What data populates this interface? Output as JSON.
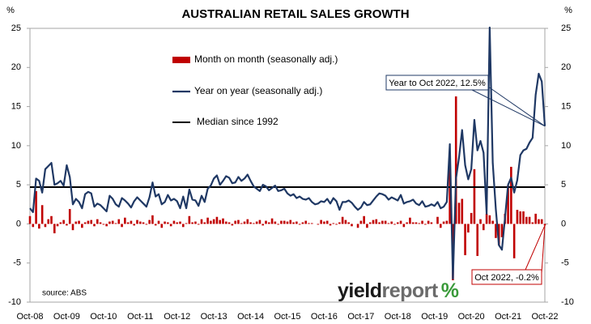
{
  "chart_data": {
    "type": "bar",
    "title": "AUSTRALIAN RETAIL SALES GROWTH",
    "y_unit": "%",
    "y2_unit": "%",
    "source": "source: ABS",
    "logo": [
      "yield",
      "report",
      "%"
    ],
    "legend": "upper center",
    "categories": [
      "Oct-08",
      null,
      null,
      null,
      null,
      null,
      null,
      null,
      null,
      null,
      null,
      null,
      "Oct-09",
      null,
      null,
      null,
      null,
      null,
      null,
      null,
      null,
      null,
      null,
      null,
      "Oct-10",
      null,
      null,
      null,
      null,
      null,
      null,
      null,
      null,
      null,
      null,
      null,
      "Oct-11",
      null,
      null,
      null,
      null,
      null,
      null,
      null,
      null,
      null,
      null,
      null,
      "Oct-12",
      null,
      null,
      null,
      null,
      null,
      null,
      null,
      null,
      null,
      null,
      null,
      "Oct-13",
      null,
      null,
      null,
      null,
      null,
      null,
      null,
      null,
      null,
      null,
      null,
      "Oct-14",
      null,
      null,
      null,
      null,
      null,
      null,
      null,
      null,
      null,
      null,
      null,
      "Oct-15",
      null,
      null,
      null,
      null,
      null,
      null,
      null,
      null,
      null,
      null,
      null,
      "Oct-16",
      null,
      null,
      null,
      null,
      null,
      null,
      null,
      null,
      null,
      null,
      null,
      "Oct-17",
      null,
      null,
      null,
      null,
      null,
      null,
      null,
      null,
      null,
      null,
      null,
      "Oct-18",
      null,
      null,
      null,
      null,
      null,
      null,
      null,
      null,
      null,
      null,
      null,
      "Oct-19",
      null,
      null,
      null,
      null,
      null,
      null,
      null,
      null,
      null,
      null,
      null,
      "Oct-20",
      null,
      null,
      null,
      null,
      null,
      null,
      null,
      null,
      null,
      null,
      null,
      "Oct-21",
      null,
      null,
      null,
      null,
      null,
      null,
      null,
      null,
      null,
      null,
      null,
      "Oct-22"
    ],
    "series": [
      {
        "name": "Month on month (seasonally adj.)",
        "type": "bar",
        "color": "#c00000",
        "values": [
          1.0,
          -0.4,
          4.2,
          -0.6,
          2.4,
          -0.4,
          0.6,
          1.0,
          -1.2,
          -0.3,
          0.2,
          0.5,
          -0.2,
          1.9,
          -0.8,
          0.3,
          0.4,
          -0.5,
          0.2,
          0.4,
          0.5,
          -0.3,
          0.6,
          0.2,
          -0.1,
          -0.3,
          0.3,
          0.4,
          0.1,
          0.6,
          -0.4,
          0.8,
          0.2,
          0.4,
          -0.2,
          0.5,
          0.3,
          0.2,
          -0.1,
          0.5,
          1.1,
          -0.2,
          0.4,
          -0.5,
          0.3,
          0.2,
          -0.3,
          0.4,
          0.2,
          0.3,
          -0.4,
          0.1,
          1.0,
          0.2,
          0.3,
          -0.1,
          0.6,
          0.2,
          0.8,
          0.4,
          0.6,
          0.9,
          0.5,
          0.7,
          0.3,
          0.2,
          -0.2,
          0.4,
          0.5,
          0.1,
          0.3,
          0.6,
          0.2,
          0.1,
          0.3,
          0.5,
          -0.2,
          0.4,
          0.2,
          0.7,
          0.3,
          -0.1,
          0.4,
          0.4,
          0.3,
          0.5,
          0.2,
          0.3,
          -0.1,
          0.2,
          0.4,
          0.1,
          0.1,
          0.0,
          -0.1,
          0.5,
          0.3,
          0.4,
          -0.2,
          0.1,
          -0.1,
          0.2,
          0.9,
          0.5,
          0.2,
          -0.3,
          0.0,
          -0.5,
          0.4,
          1.0,
          -0.5,
          0.2,
          0.5,
          0.6,
          0.2,
          0.4,
          0.4,
          0.1,
          0.3,
          -0.1,
          0.2,
          0.4,
          -0.4,
          0.2,
          0.8,
          0.2,
          0.2,
          0.1,
          0.4,
          -0.1,
          0.4,
          0.2,
          0.0,
          0.9,
          -0.5,
          0.3,
          0.4,
          8.2,
          -7.2,
          16.3,
          2.7,
          3.2,
          -4.0,
          -1.1,
          1.4,
          7.0,
          -4.1,
          0.6,
          -0.8,
          1.3,
          1.1,
          0.4,
          -1.8,
          -2.7,
          -1.7,
          1.3,
          4.9,
          7.3,
          -4.4,
          1.8,
          1.6,
          1.6,
          0.9,
          0.9,
          0.2,
          1.3,
          0.6,
          0.6,
          -0.2
        ]
      },
      {
        "name": "Year on year (seasonally adj.)",
        "type": "line",
        "color": "#1f3864",
        "values": [
          2.0,
          1.5,
          5.8,
          5.5,
          4.0,
          7.0,
          7.4,
          7.8,
          5.0,
          5.2,
          5.5,
          4.9,
          7.5,
          6.0,
          2.5,
          3.2,
          2.8,
          2.0,
          3.8,
          4.1,
          3.9,
          2.2,
          2.6,
          2.4,
          2.0,
          1.6,
          3.6,
          3.2,
          2.5,
          2.2,
          3.3,
          3.0,
          2.6,
          2.1,
          2.9,
          3.4,
          3.0,
          2.6,
          2.2,
          3.4,
          5.3,
          3.5,
          3.8,
          2.5,
          2.8,
          3.7,
          3.0,
          3.2,
          2.9,
          2.0,
          3.5,
          2.0,
          4.4,
          3.1,
          3.0,
          2.3,
          3.6,
          2.8,
          4.5,
          4.9,
          5.8,
          6.2,
          5.0,
          5.5,
          6.1,
          5.9,
          5.2,
          5.3,
          6.0,
          5.5,
          5.8,
          6.3,
          5.5,
          4.8,
          4.5,
          4.2,
          5.0,
          4.8,
          4.3,
          4.6,
          4.9,
          4.2,
          4.3,
          4.5,
          3.9,
          3.6,
          3.8,
          3.3,
          3.5,
          3.2,
          3.1,
          3.3,
          2.8,
          2.5,
          2.6,
          2.9,
          2.8,
          3.2,
          2.6,
          3.3,
          2.9,
          1.8,
          2.8,
          2.8,
          3.0,
          2.7,
          2.2,
          1.8,
          2.1,
          2.8,
          2.4,
          2.5,
          3.0,
          3.5,
          3.9,
          3.8,
          3.6,
          3.1,
          3.4,
          3.2,
          3.0,
          3.7,
          2.6,
          2.8,
          2.9,
          3.1,
          2.6,
          2.4,
          2.9,
          2.2,
          2.3,
          2.5,
          2.3,
          2.8,
          2.0,
          2.2,
          2.8,
          10.2,
          -7.0,
          5.8,
          8.5,
          12.0,
          7.5,
          5.7,
          7.0,
          13.3,
          9.4,
          10.6,
          9.1,
          1.3,
          25.1,
          7.8,
          1.9,
          -2.7,
          -3.3,
          0.8,
          5.0,
          5.9,
          4.0,
          5.6,
          8.8,
          9.4,
          9.6,
          10.4,
          11.0,
          16.5,
          19.2,
          18.2,
          12.5
        ]
      }
    ],
    "median": {
      "name": "Median since 1992",
      "value": 4.7,
      "color": "#000000"
    },
    "annotations": [
      {
        "text": "Year to Oct 2022, 12.5%",
        "series": 1,
        "color": "#1f3864"
      },
      {
        "text": "Oct 2022, -0.2%",
        "series": 0,
        "color": "#c00000"
      }
    ],
    "ylim": [
      -10,
      25
    ],
    "yticks": [
      -10,
      -5,
      0,
      5,
      10,
      15,
      20,
      25
    ],
    "y2lim": [
      -10,
      25
    ],
    "y2ticks": [
      -10,
      -5,
      0,
      5,
      10,
      15,
      20,
      25
    ]
  }
}
